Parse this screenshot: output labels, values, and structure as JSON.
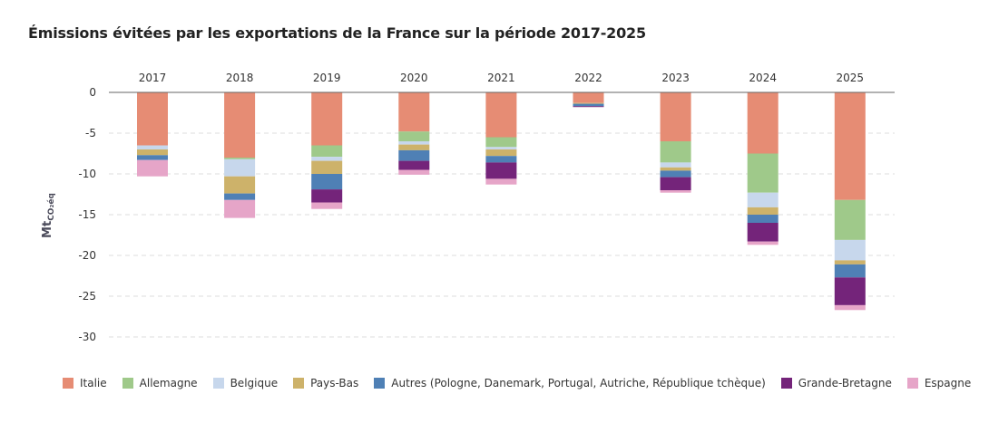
{
  "chart_data": {
    "type": "bar",
    "stacked": true,
    "title": "Émissions évitées par les exportations de la France sur la période 2017-2025",
    "ylabel_main": "Mt",
    "ylabel_sub": "CO₂éq",
    "xlabel": "",
    "x_axis_position": "top",
    "ylim": [
      -30,
      0
    ],
    "yticks": [
      0,
      -5,
      -10,
      -15,
      -20,
      -25,
      -30
    ],
    "grid": true,
    "legend_position": "bottom",
    "categories": [
      "2017",
      "2018",
      "2019",
      "2020",
      "2021",
      "2022",
      "2023",
      "2024",
      "2025"
    ],
    "series": [
      {
        "name": "Italie",
        "color": "#e68c74",
        "values": [
          -6.5,
          -8.0,
          -6.5,
          -4.8,
          -5.5,
          -1.3,
          -6.0,
          -7.5,
          -13.2
        ]
      },
      {
        "name": "Allemagne",
        "color": "#9fc98a",
        "values": [
          0,
          -0.2,
          -1.4,
          -1.2,
          -1.2,
          0,
          -2.6,
          -4.8,
          -4.9
        ]
      },
      {
        "name": "Belgique",
        "color": "#c7d7ec",
        "values": [
          -0.5,
          -2.1,
          -0.5,
          -0.4,
          -0.3,
          0,
          -0.6,
          -1.8,
          -2.5
        ]
      },
      {
        "name": "Pays-Bas",
        "color": "#cdb26a",
        "values": [
          -0.7,
          -2.1,
          -1.6,
          -0.7,
          -0.8,
          -0.1,
          -0.4,
          -0.9,
          -0.5
        ]
      },
      {
        "name": "Autres (Pologne, Danemark, Portugal, Autriche, République tchèque)",
        "color": "#4f80b5",
        "values": [
          -0.6,
          -0.8,
          -1.9,
          -1.3,
          -0.8,
          -0.3,
          -0.8,
          -1.0,
          -1.6
        ]
      },
      {
        "name": "Grande-Bretagne",
        "color": "#74247a",
        "values": [
          0,
          0,
          -1.6,
          -1.1,
          -2.0,
          -0.1,
          -1.6,
          -2.3,
          -3.4
        ]
      },
      {
        "name": "Espagne",
        "color": "#e6a5c8",
        "values": [
          -2.0,
          -2.2,
          -0.8,
          -0.6,
          -0.7,
          0,
          -0.3,
          -0.4,
          -0.6
        ]
      }
    ]
  }
}
